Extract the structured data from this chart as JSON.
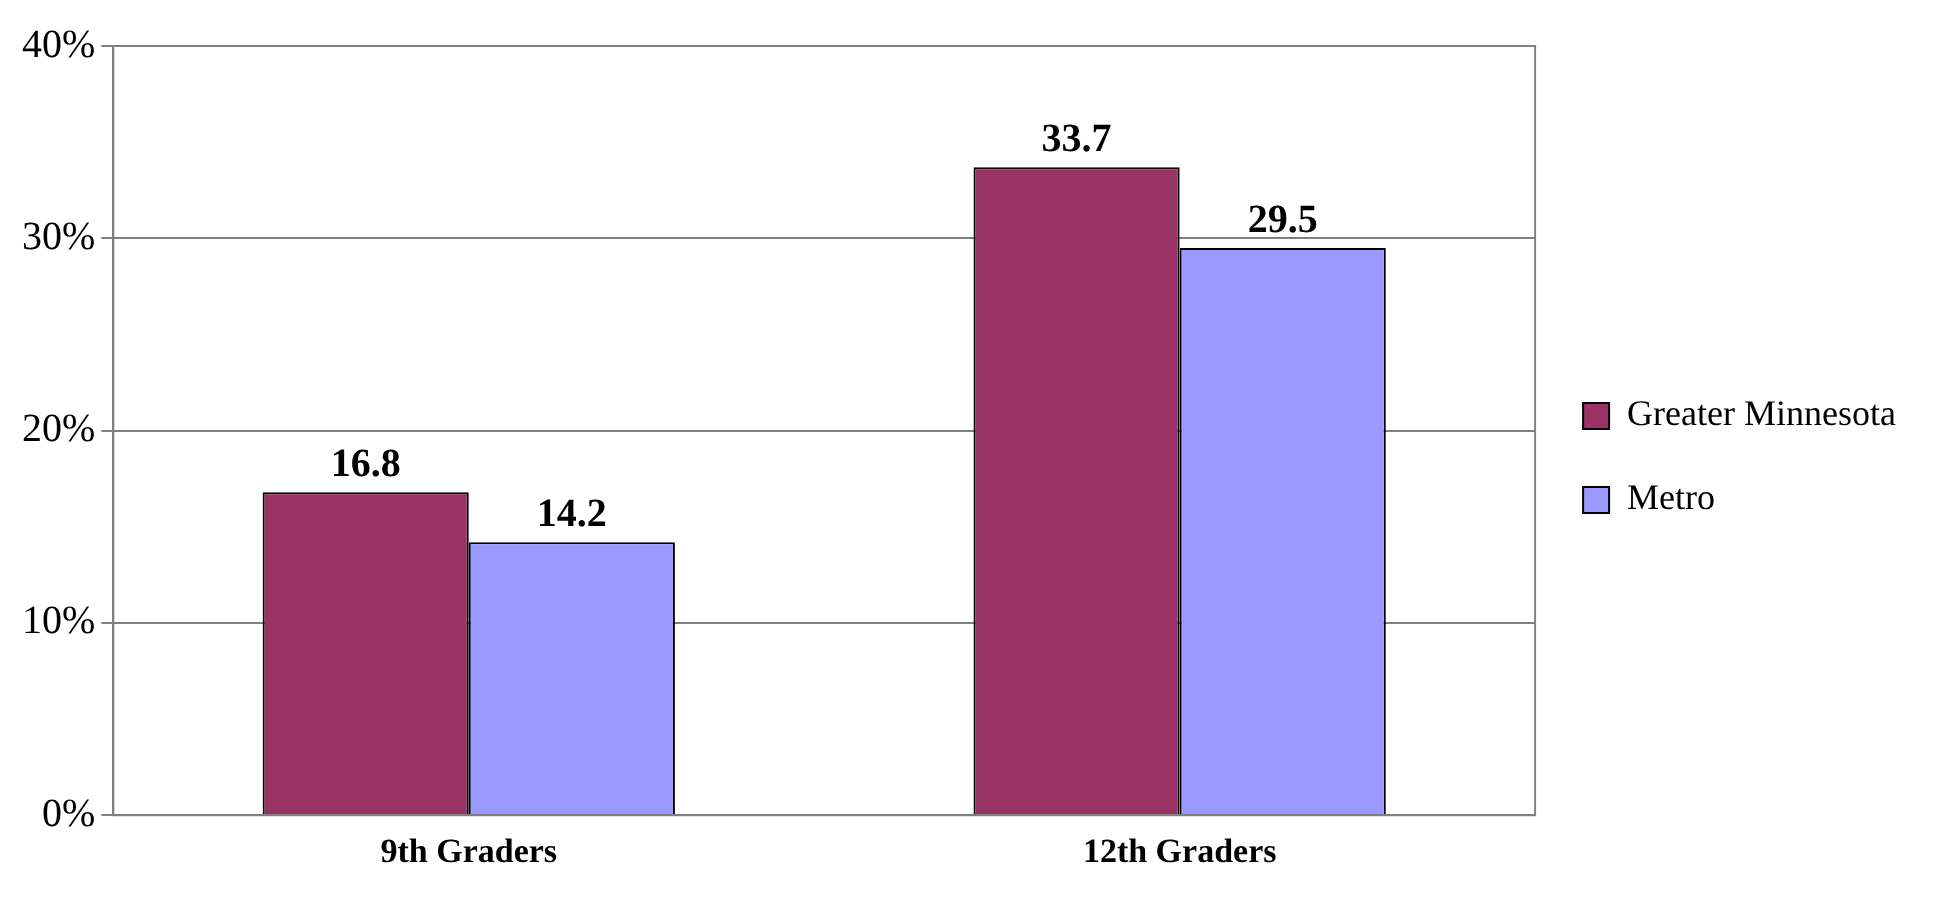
{
  "chart_data": {
    "type": "bar",
    "categories": [
      "9th Graders",
      "12th Graders"
    ],
    "series": [
      {
        "name": "Greater Minnesota",
        "color": "#993366",
        "values": [
          16.8,
          33.7
        ]
      },
      {
        "name": "Metro",
        "color": "#9999ff",
        "values": [
          14.2,
          29.5
        ]
      }
    ],
    "ylim": [
      0,
      40
    ],
    "yticks": [
      {
        "value": 0,
        "label": "0%"
      },
      {
        "value": 10,
        "label": "10%"
      },
      {
        "value": 20,
        "label": "20%"
      },
      {
        "value": 30,
        "label": "30%"
      },
      {
        "value": 40,
        "label": "40%"
      }
    ],
    "grid": "y",
    "legend": "right",
    "data_labels": true
  }
}
